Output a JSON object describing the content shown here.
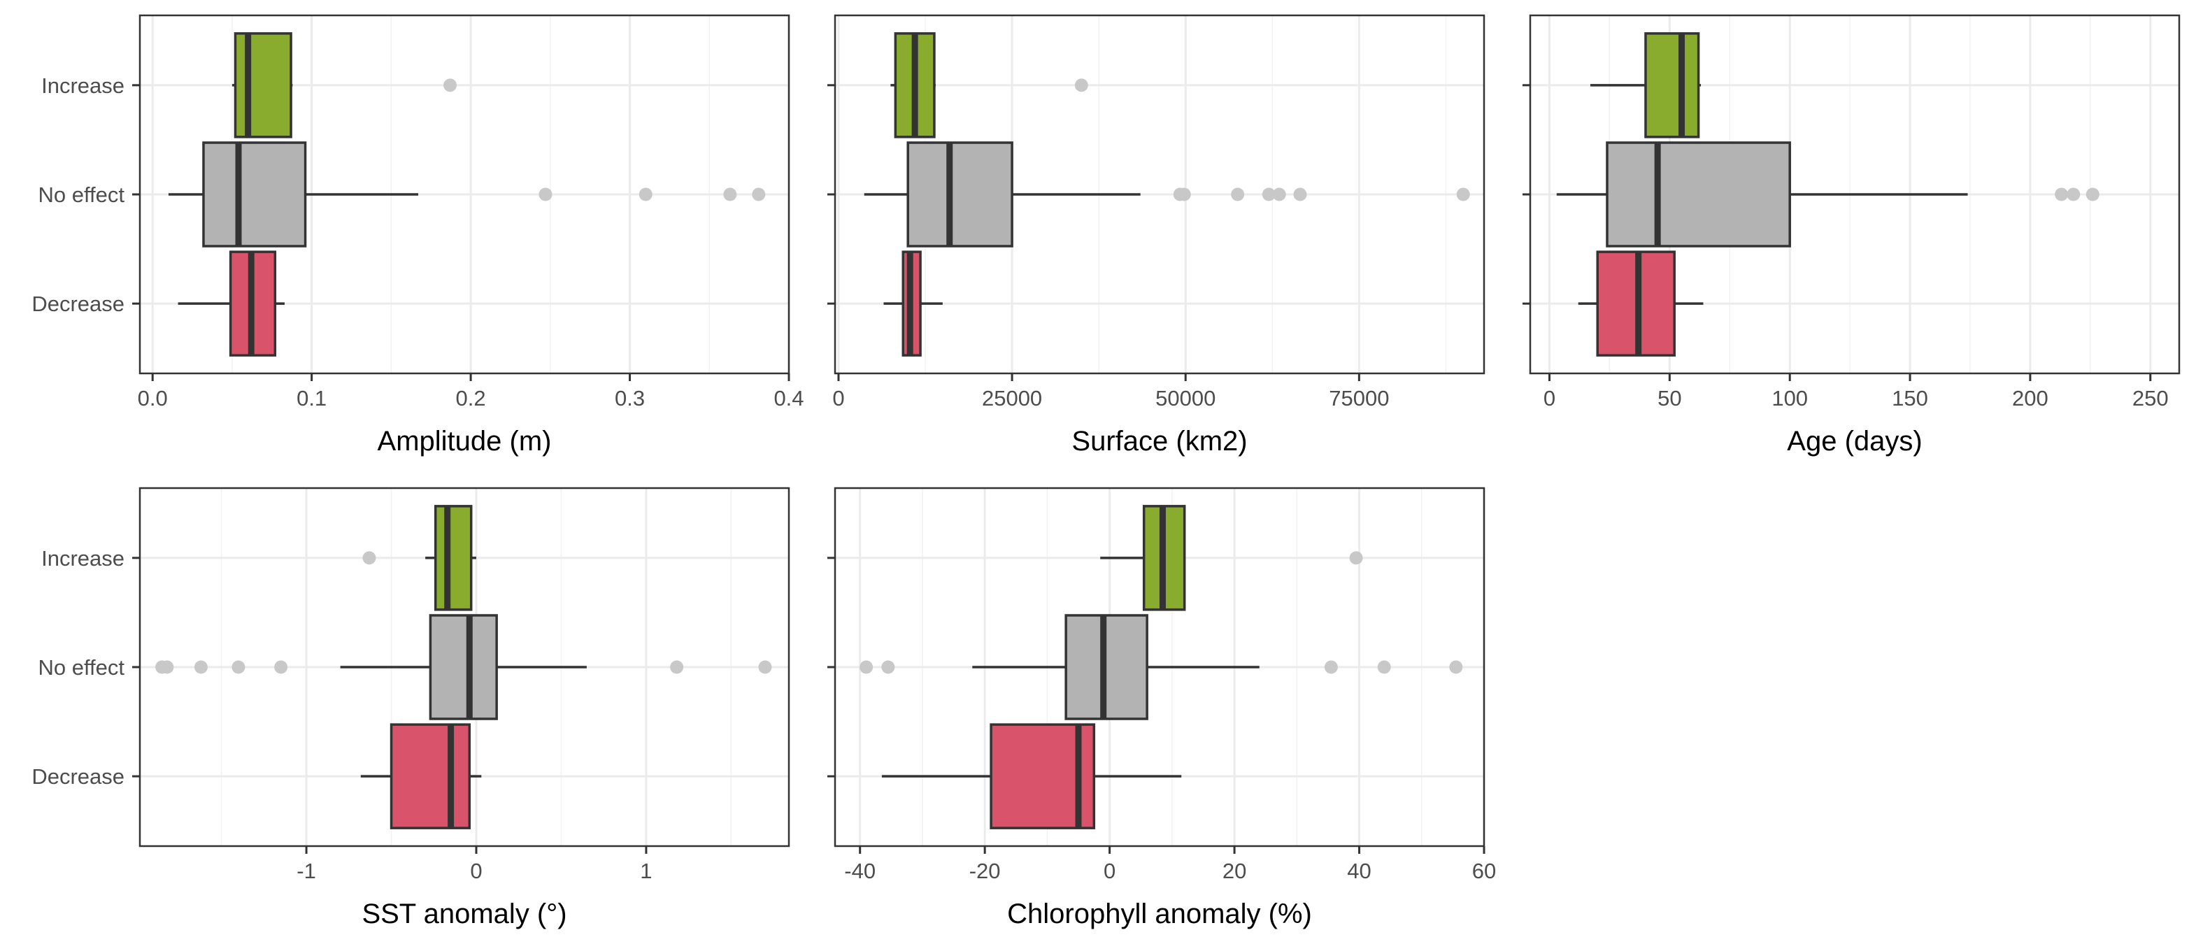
{
  "colors": {
    "Increase": "#8aac2e",
    "No effect": "#b3b3b3",
    "Decrease": "#d9536a",
    "outlier": "#c8c8c8",
    "box_stroke": "#333333",
    "panel_border": "#333333",
    "grid": "#ebebeb"
  },
  "chart_data": [
    {
      "type": "boxplot",
      "xlabel": "Amplitude (m)",
      "categories": [
        "Increase",
        "No effect",
        "Decrease"
      ],
      "xlim": [
        -0.008,
        0.4
      ],
      "xticks": [
        0.0,
        0.1,
        0.2,
        0.3,
        0.4
      ],
      "tick_labels": [
        "0.0",
        "0.1",
        "0.2",
        "0.3",
        "0.4"
      ],
      "grid": true,
      "boxes": [
        {
          "category": "Increase",
          "min": 0.05,
          "q1": 0.052,
          "median": 0.06,
          "q3": 0.087,
          "max": 0.088,
          "outliers": [
            0.187
          ]
        },
        {
          "category": "No effect",
          "min": 0.01,
          "q1": 0.032,
          "median": 0.054,
          "q3": 0.096,
          "max": 0.167,
          "outliers": [
            0.247,
            0.31,
            0.363,
            0.381
          ]
        },
        {
          "category": "Decrease",
          "min": 0.016,
          "q1": 0.049,
          "median": 0.062,
          "q3": 0.077,
          "max": 0.083,
          "outliers": []
        }
      ]
    },
    {
      "type": "boxplot",
      "xlabel": "Surface (km2)",
      "categories": [
        "Increase",
        "No effect",
        "Decrease"
      ],
      "xlim": [
        -500,
        93000
      ],
      "xticks": [
        0,
        25000,
        50000,
        75000
      ],
      "tick_labels": [
        "0",
        "25000",
        "50000",
        "75000"
      ],
      "grid": true,
      "boxes": [
        {
          "category": "Increase",
          "min": 7500,
          "q1": 8200,
          "median": 11000,
          "q3": 13800,
          "max": 14000,
          "outliers": [
            35000
          ]
        },
        {
          "category": "No effect",
          "min": 3700,
          "q1": 10000,
          "median": 16000,
          "q3": 25000,
          "max": 43500,
          "outliers": [
            49200,
            49800,
            57500,
            62000,
            63500,
            66500,
            90000
          ]
        },
        {
          "category": "Decrease",
          "min": 6500,
          "q1": 9300,
          "median": 10300,
          "q3": 11800,
          "max": 15000,
          "outliers": []
        }
      ]
    },
    {
      "type": "boxplot",
      "xlabel": "Age (days)",
      "categories": [
        "Increase",
        "No effect",
        "Decrease"
      ],
      "xlim": [
        -8,
        262
      ],
      "xticks": [
        0,
        50,
        100,
        150,
        200,
        250
      ],
      "tick_labels": [
        "0",
        "50",
        "100",
        "150",
        "200",
        "250"
      ],
      "grid": true,
      "boxes": [
        {
          "category": "Increase",
          "min": 17,
          "q1": 40,
          "median": 55,
          "q3": 62,
          "max": 63,
          "outliers": []
        },
        {
          "category": "No effect",
          "min": 3,
          "q1": 24,
          "median": 45,
          "q3": 100,
          "max": 174,
          "outliers": [
            213,
            218,
            226
          ]
        },
        {
          "category": "Decrease",
          "min": 12,
          "q1": 20,
          "median": 37,
          "q3": 52,
          "max": 64,
          "outliers": []
        }
      ]
    },
    {
      "type": "boxplot",
      "xlabel": "SST anomaly (°)",
      "categories": [
        "Increase",
        "No effect",
        "Decrease"
      ],
      "xlim": [
        -1.98,
        1.84
      ],
      "xticks": [
        -1,
        0,
        1
      ],
      "tick_labels": [
        "-1",
        "0",
        "1"
      ],
      "grid": true,
      "boxes": [
        {
          "category": "Increase",
          "min": -0.3,
          "q1": -0.24,
          "median": -0.17,
          "q3": -0.03,
          "max": 0.0,
          "outliers": [
            -0.63
          ]
        },
        {
          "category": "No effect",
          "min": -0.8,
          "q1": -0.27,
          "median": -0.04,
          "q3": 0.12,
          "max": 0.65,
          "outliers": [
            -1.85,
            -1.82,
            -1.62,
            -1.4,
            -1.15,
            1.18,
            1.7
          ]
        },
        {
          "category": "Decrease",
          "min": -0.68,
          "q1": -0.5,
          "median": -0.15,
          "q3": -0.04,
          "max": 0.03,
          "outliers": []
        }
      ]
    },
    {
      "type": "boxplot",
      "xlabel": "Chlorophyll anomaly (%)",
      "categories": [
        "Increase",
        "No effect",
        "Decrease"
      ],
      "xlim": [
        -44,
        60
      ],
      "xticks": [
        -40,
        -20,
        0,
        20,
        40,
        60
      ],
      "tick_labels": [
        "-40",
        "-20",
        "0",
        "20",
        "40",
        "60"
      ],
      "grid": true,
      "boxes": [
        {
          "category": "Increase",
          "min": -1.5,
          "q1": 5.5,
          "median": 8.5,
          "q3": 12,
          "max": 12,
          "outliers": [
            39.5
          ]
        },
        {
          "category": "No effect",
          "min": -22,
          "q1": -7,
          "median": -1,
          "q3": 6,
          "max": 24,
          "outliers": [
            -39,
            -35.5,
            35.5,
            44,
            55.5
          ]
        },
        {
          "category": "Decrease",
          "min": -36.5,
          "q1": -19,
          "median": -5,
          "q3": -2.5,
          "max": 11.5,
          "outliers": []
        }
      ]
    }
  ]
}
